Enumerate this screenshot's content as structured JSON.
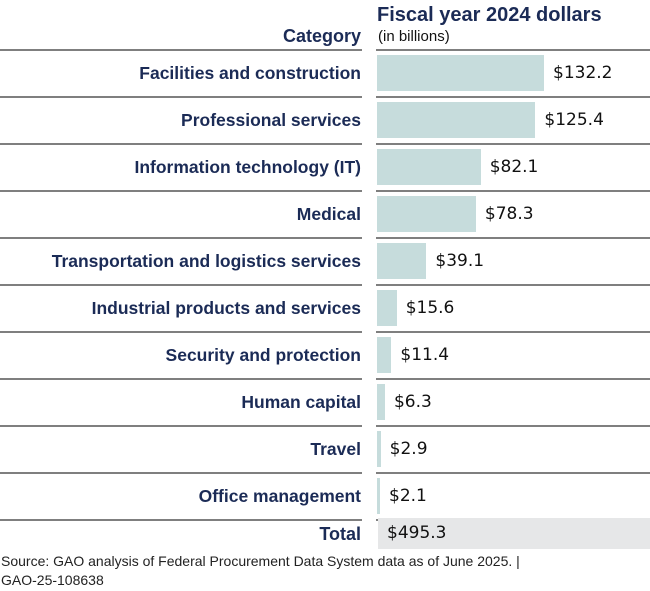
{
  "chart_data": {
    "type": "bar",
    "orientation": "horizontal",
    "title": "Fiscal year 2024 dollars",
    "subtitle": "(in billions)",
    "category_header": "Category",
    "categories": [
      "Facilities and construction",
      "Professional services",
      "Information technology (IT)",
      "Medical",
      "Transportation and logistics services",
      "Industrial products and services",
      "Security and protection",
      "Human capital",
      "Travel",
      "Office management"
    ],
    "values": [
      132.2,
      125.4,
      82.1,
      78.3,
      39.1,
      15.6,
      11.4,
      6.3,
      2.9,
      2.1
    ],
    "value_labels": [
      "$132.2",
      "$125.4",
      "$82.1",
      "$78.3",
      "$39.1",
      "$15.6",
      "$11.4",
      "$6.3",
      "$2.9",
      "$2.1"
    ],
    "total_label": "Total",
    "total_value": 495.3,
    "total_value_label": "$495.3",
    "xlim": [
      0,
      132.2
    ],
    "grid": false,
    "colors": {
      "bar": "#c6dcdc",
      "text": "#1b2b56",
      "total_bg": "#e6e7e8"
    }
  },
  "footer": {
    "source": "Source: GAO analysis of Federal Procurement Data System data as of June 2025.  |",
    "report_id": "GAO-25-108638"
  }
}
